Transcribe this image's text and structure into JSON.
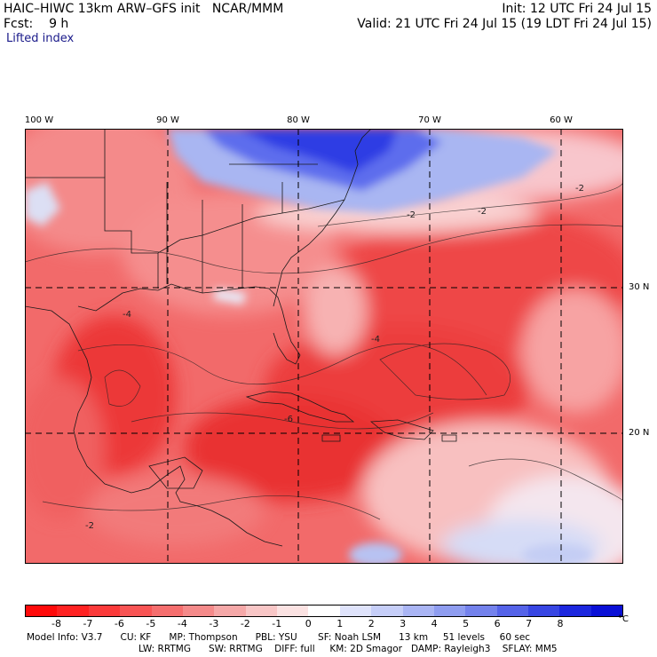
{
  "header": {
    "model": "HAIC–HIWC 13km ARW–GFS init",
    "org": "NCAR/MMM",
    "init": "Init: 12 UTC Fri 24 Jul 15",
    "fcst_label": "Fcst:",
    "fcst_value": "9 h",
    "valid": "Valid: 21 UTC Fri 24 Jul 15 (19 LDT Fri 24 Jul 15)",
    "field": "Lifted index"
  },
  "map": {
    "longitude_labels": [
      "100 W",
      "90 W",
      "80 W",
      "70 W",
      "60 W"
    ],
    "latitude_labels": [
      "30 N",
      "20 N"
    ],
    "contour_labels": [
      "-2",
      "-2",
      "-2",
      "-4",
      "-6",
      "-4",
      "-2"
    ],
    "colors": {
      "strong_unstable": "#e8282e",
      "moderate_unstable": "#f26062",
      "weak_unstable": "#f8a6a6",
      "neutral": "#fbe4e4",
      "weak_stable": "#cdd6f7",
      "strong_stable": "#2636e6",
      "land_water": "#f0c7c7"
    }
  },
  "colorbar": {
    "ticks": [
      "-8",
      "-7",
      "-6",
      "-5",
      "-4",
      "-3",
      "-2",
      "-1",
      "0",
      "1",
      "2",
      "3",
      "4",
      "5",
      "6",
      "7",
      "8"
    ],
    "unit": "°C",
    "colors": [
      "#ff0a0a",
      "#ff2222",
      "#fb3a3a",
      "#f85454",
      "#f56e6e",
      "#f48a8a",
      "#f5a8a8",
      "#f8c6c6",
      "#fbe2e2",
      "#ffffff",
      "#dfe3fb",
      "#c6cef8",
      "#aab5f4",
      "#8f9df0",
      "#7482ec",
      "#5563e8",
      "#3846e3",
      "#1c27de",
      "#0a10d6"
    ]
  },
  "footer": {
    "line1": [
      "Model Info: V3.7",
      "CU: KF",
      "MP: Thompson",
      "PBL: YSU",
      "SF: Noah LSM",
      "13 km",
      "51 levels",
      "60 sec"
    ],
    "line2": [
      "LW: RRTMG",
      "SW: RRTMG",
      "DIFF: full",
      "KM: 2D Smagor",
      "DAMP: Rayleigh3",
      "SFLAY: MM5"
    ]
  }
}
